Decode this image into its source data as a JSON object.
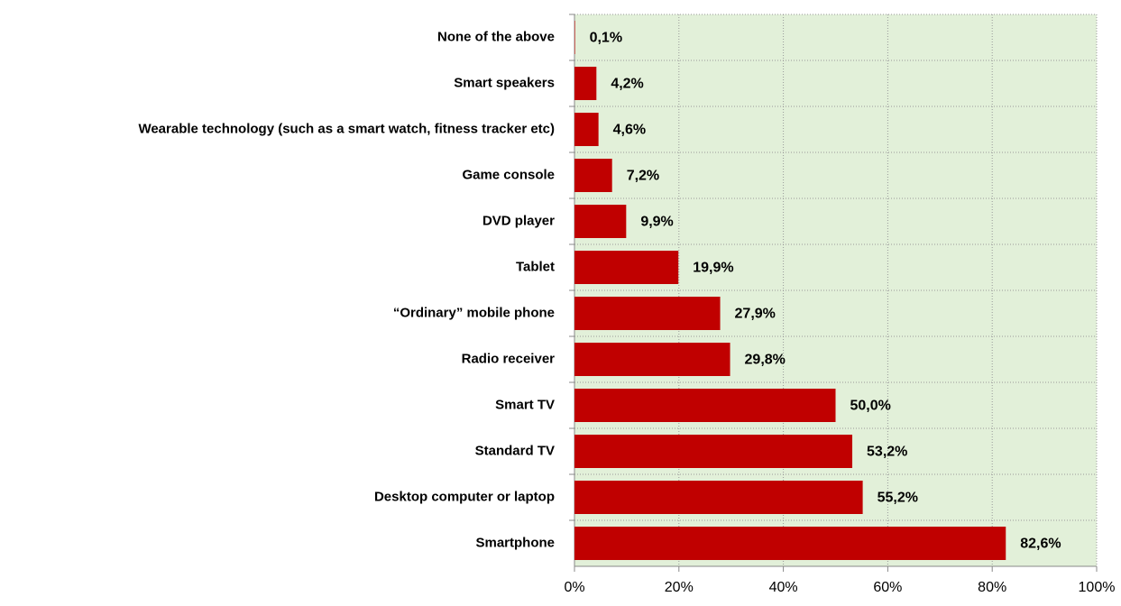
{
  "chart_data": {
    "type": "bar",
    "orientation": "horizontal",
    "categories": [
      "None of the above",
      "Smart speakers",
      "Wearable technology (such as a smart watch, fitness tracker etc)",
      "Game console",
      "DVD player",
      "Tablet",
      "“Ordinary” mobile phone",
      "Radio receiver",
      "Smart TV",
      "Standard TV",
      "Desktop computer or laptop",
      "Smartphone"
    ],
    "values": [
      0.1,
      4.2,
      4.6,
      7.2,
      9.9,
      19.9,
      27.9,
      29.8,
      50.0,
      53.2,
      55.2,
      82.6
    ],
    "value_labels": [
      "0,1%",
      "4,2%",
      "4,6%",
      "7,2%",
      "9,9%",
      "19,9%",
      "27,9%",
      "29,8%",
      "50,0%",
      "53,2%",
      "55,2%",
      "82,6%"
    ],
    "color": "#c00000",
    "xlim": [
      0,
      100
    ],
    "xticks": [
      {
        "value": 0,
        "label": "0%"
      },
      {
        "value": 20,
        "label": "20%"
      },
      {
        "value": 40,
        "label": "40%"
      },
      {
        "value": 60,
        "label": "60%"
      },
      {
        "value": 80,
        "label": "80%"
      },
      {
        "value": 100,
        "label": "100%"
      }
    ],
    "grid": true,
    "plot_background": "#e2f0d9"
  }
}
